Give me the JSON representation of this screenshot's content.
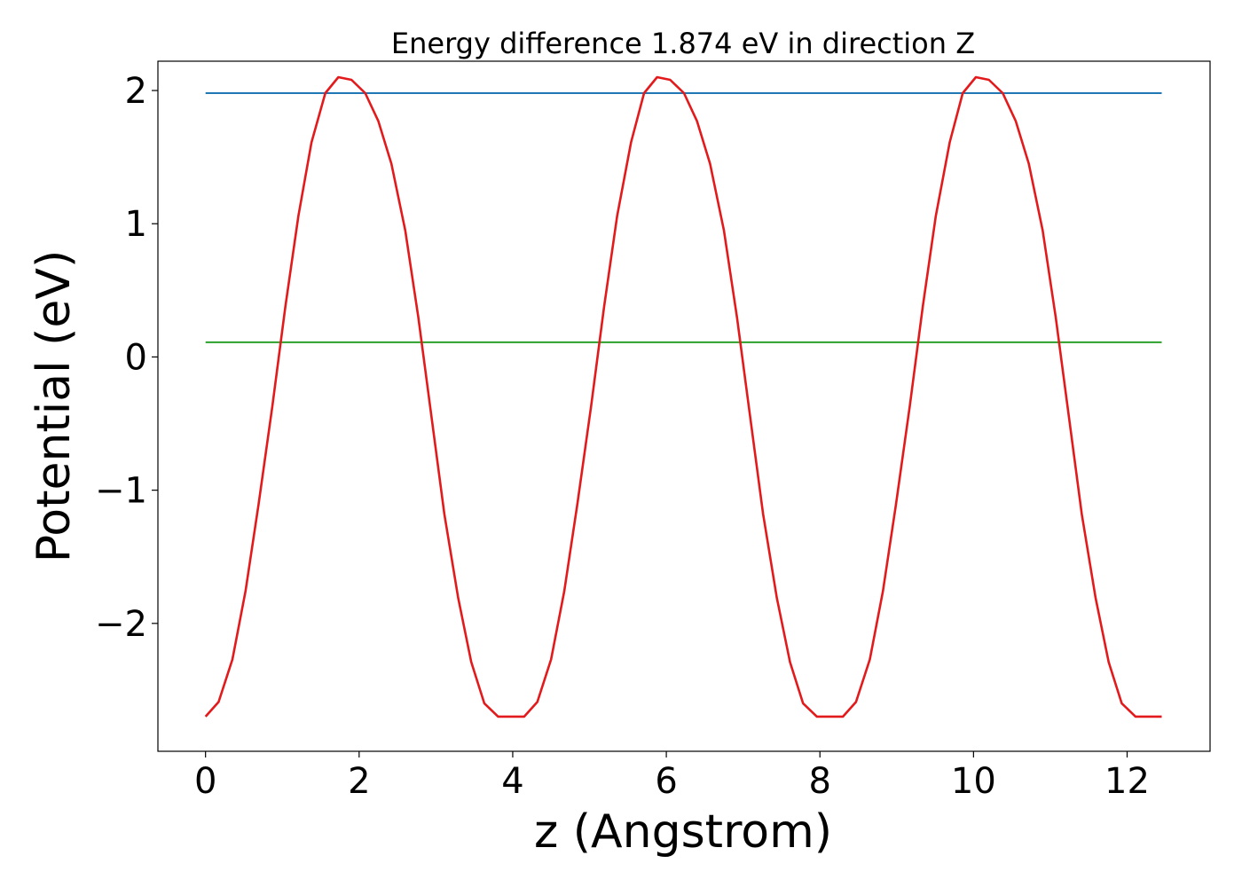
{
  "chart_data": {
    "type": "line",
    "title": "Energy difference 1.874 eV in direction Z",
    "xlabel": "z (Angstrom)",
    "ylabel": "Potential (eV)",
    "xlim": [
      -0.62,
      13.08
    ],
    "ylim": [
      -2.96,
      2.22
    ],
    "xticks": [
      0,
      2,
      4,
      6,
      8,
      10,
      12
    ],
    "xtick_labels": [
      "0",
      "2",
      "4",
      "6",
      "8",
      "10",
      "12"
    ],
    "yticks": [
      -2,
      -1,
      0,
      1,
      2
    ],
    "ytick_labels": [
      "−2",
      "−1",
      "0",
      "1",
      "2"
    ],
    "grid": false,
    "legend": "none",
    "series": [
      {
        "color": "#1f77b4",
        "x": [
          0,
          12.45
        ],
        "y": [
          1.98,
          1.98
        ]
      },
      {
        "color": "#2ca02c",
        "x": [
          0,
          12.45
        ],
        "y": [
          0.11,
          0.11
        ]
      },
      {
        "color": "#e31a1c",
        "x": [
          0,
          0.17,
          0.35,
          0.52,
          0.69,
          0.87,
          1.04,
          1.21,
          1.38,
          1.56,
          1.73,
          1.9,
          2.08,
          2.25,
          2.42,
          2.6,
          2.77,
          2.94,
          3.11,
          3.29,
          3.46,
          3.63,
          3.81,
          3.98,
          4.15,
          4.32,
          4.5,
          4.67,
          4.84,
          5.02,
          5.19,
          5.36,
          5.54,
          5.71,
          5.88,
          6.05,
          6.23,
          6.4,
          6.57,
          6.75,
          6.92,
          7.09,
          7.26,
          7.44,
          7.61,
          7.78,
          7.96,
          8.13,
          8.3,
          8.47,
          8.65,
          8.82,
          8.99,
          9.17,
          9.34,
          9.51,
          9.69,
          9.86,
          10.03,
          10.2,
          10.38,
          10.55,
          10.72,
          10.9,
          11.07,
          11.24,
          11.41,
          11.59,
          11.76,
          11.93,
          12.11,
          12.28,
          12.45
        ],
        "y": [
          -2.7,
          -2.59,
          -2.27,
          -1.76,
          -1.11,
          -0.37,
          0.38,
          1.06,
          1.61,
          1.98,
          2.1,
          2.08,
          1.98,
          1.77,
          1.45,
          0.95,
          0.3,
          -0.44,
          -1.18,
          -1.81,
          -2.29,
          -2.6,
          -2.7,
          -2.7,
          -2.7,
          -2.59,
          -2.27,
          -1.76,
          -1.11,
          -0.37,
          0.38,
          1.06,
          1.61,
          1.98,
          2.1,
          2.08,
          1.98,
          1.77,
          1.45,
          0.95,
          0.3,
          -0.44,
          -1.18,
          -1.81,
          -2.29,
          -2.6,
          -2.7,
          -2.7,
          -2.7,
          -2.59,
          -2.27,
          -1.76,
          -1.11,
          -0.37,
          0.38,
          1.06,
          1.61,
          1.98,
          2.1,
          2.08,
          1.98,
          1.77,
          1.45,
          0.95,
          0.3,
          -0.44,
          -1.18,
          -1.81,
          -2.29,
          -2.6,
          -2.7,
          -2.7,
          -2.7
        ]
      }
    ]
  }
}
